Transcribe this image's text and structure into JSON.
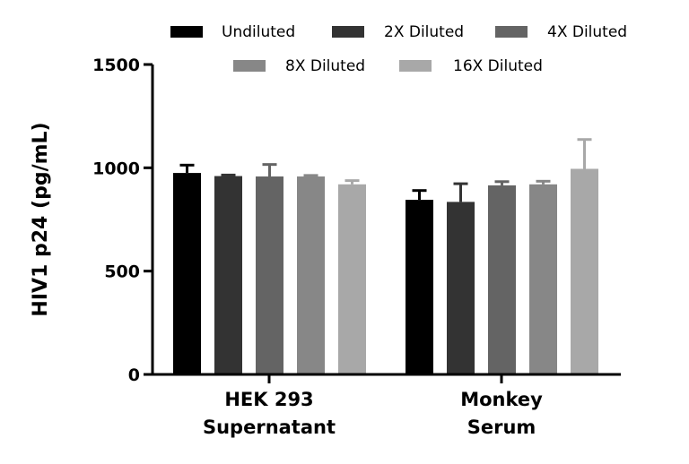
{
  "chart_data": {
    "type": "bar",
    "title": "",
    "xlabel": "",
    "ylabel": "HIV1 p24 (pg/mL)",
    "ylim": [
      0,
      1500
    ],
    "yticks": [
      "0",
      "500",
      "1000",
      "1500"
    ],
    "grid": false,
    "legend_position": "top",
    "categories": [
      [
        "HEK 293",
        "Supernatant"
      ],
      [
        "Monkey",
        "Serum"
      ]
    ],
    "series": [
      {
        "name": "Undiluted",
        "color": "#000000",
        "values": [
          975,
          845
        ],
        "errors": [
          38,
          45
        ]
      },
      {
        "name": "2X Diluted",
        "color": "#333333",
        "values": [
          960,
          835
        ],
        "errors": [
          5,
          88
        ]
      },
      {
        "name": "4X Diluted",
        "color": "#646464",
        "values": [
          958,
          915
        ],
        "errors": [
          58,
          18
        ]
      },
      {
        "name": "8X Diluted",
        "color": "#878787",
        "values": [
          958,
          920
        ],
        "errors": [
          5,
          15
        ]
      },
      {
        "name": "16X Diluted",
        "color": "#a8a8a8",
        "values": [
          920,
          995
        ],
        "errors": [
          18,
          142
        ]
      }
    ]
  }
}
